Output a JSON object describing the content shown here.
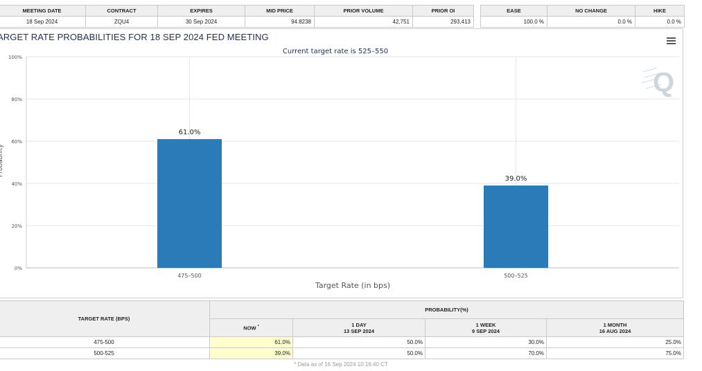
{
  "meeting_table": {
    "headers": [
      "MEETING DATE",
      "CONTRACT",
      "EXPIRES",
      "MID PRICE",
      "PRIOR VOLUME",
      "PRIOR OI"
    ],
    "row": [
      "18 Sep 2024",
      "ZQU4",
      "30 Sep 2024",
      "94.8238",
      "42,751",
      "293,413"
    ]
  },
  "direction_table": {
    "headers": [
      "EASE",
      "NO CHANGE",
      "HIKE"
    ],
    "row": [
      "100.0 %",
      "0.0 %",
      "0.0 %"
    ]
  },
  "chart": {
    "title": "ARGET RATE PROBABILITIES FOR 18 SEP 2024 FED MEETING",
    "menu_icon": "hamburger-menu-icon",
    "logo_icon": "q-logo-icon",
    "bar_color": "#2b7bb9"
  },
  "chart_data": {
    "type": "bar",
    "title": "Current target rate is 525–550",
    "xlabel": "Target Rate (in bps)",
    "ylabel": "Probability",
    "categories": [
      "475–500",
      "500–525"
    ],
    "values": [
      61.0,
      39.0
    ],
    "data_labels": [
      "61.0%",
      "39.0%"
    ],
    "ylim": [
      0,
      100
    ],
    "yticks": [
      "0%",
      "20%",
      "40%",
      "60%",
      "80%",
      "100%"
    ],
    "grid": true
  },
  "prob_table": {
    "target_header": "TARGET RATE (BPS)",
    "prob_header": "PROBABILITY(%)",
    "now_header": "NOW",
    "now_mark": "*",
    "col_headers": [
      {
        "line1": "1 DAY",
        "line2": "13 SEP 2024"
      },
      {
        "line1": "1 WEEK",
        "line2": "9 SEP 2024"
      },
      {
        "line1": "1 MONTH",
        "line2": "16 AUG 2024"
      }
    ],
    "rows": [
      {
        "rate": "475-500",
        "now": "61.0%",
        "day": "50.0%",
        "week": "30.0%",
        "month": "25.0%"
      },
      {
        "rate": "500-525",
        "now": "39.0%",
        "day": "50.0%",
        "week": "70.0%",
        "month": "75.0%"
      }
    ],
    "footnote": "* Data as of 16 Sep 2024 10:16:40 CT"
  }
}
